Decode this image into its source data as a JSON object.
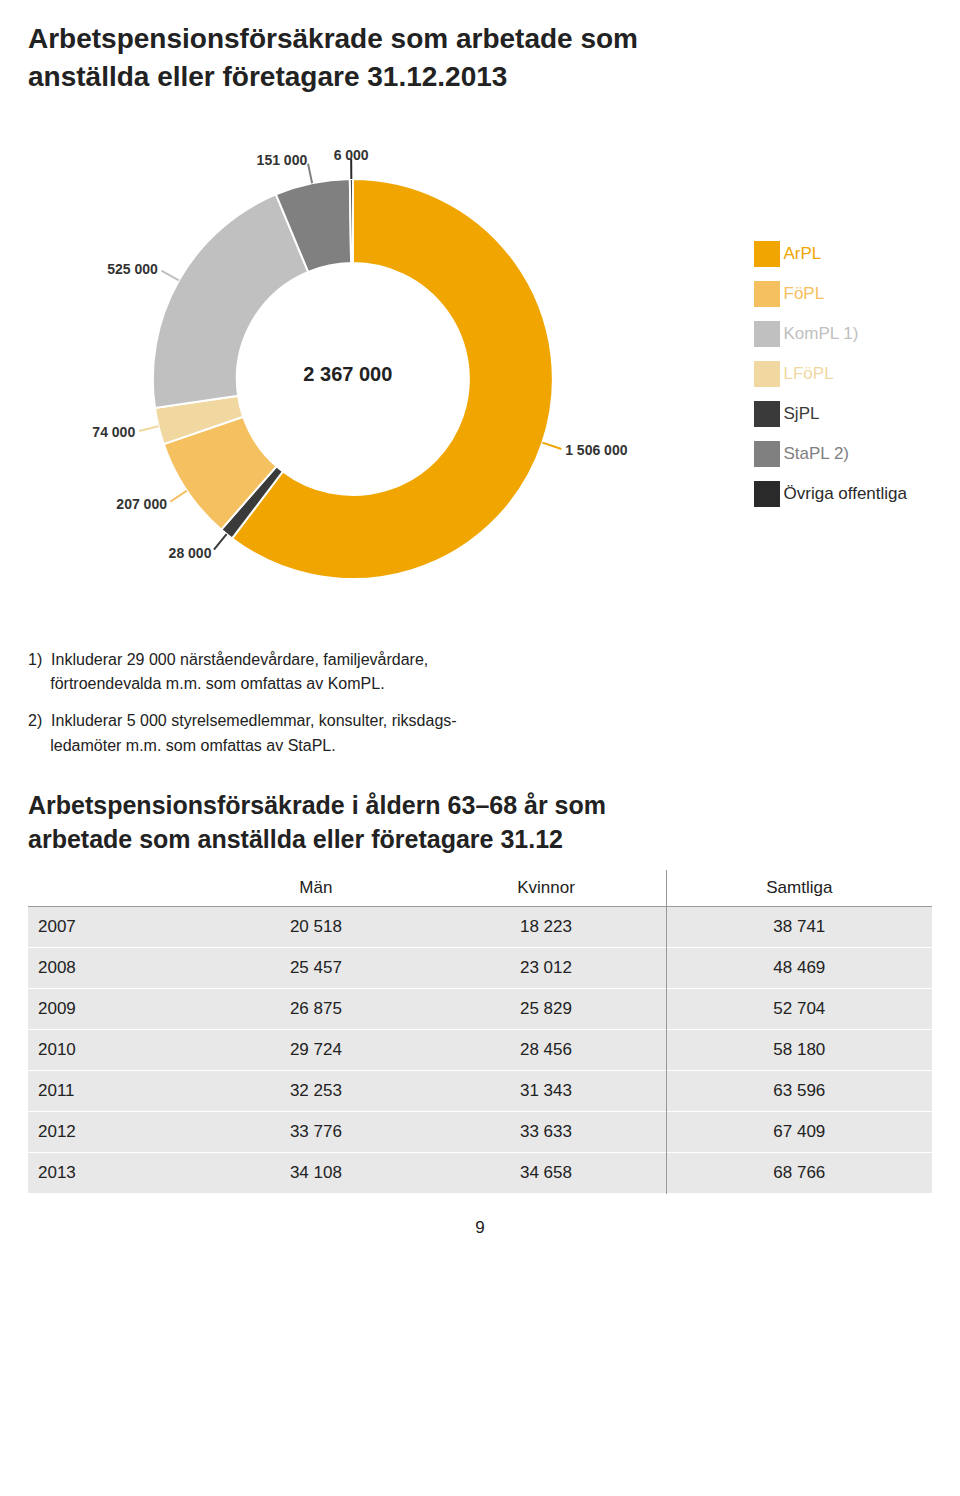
{
  "chart_data": [
    {
      "type": "pie",
      "title": "Arbetspensionsförsäkrade som arbetade som\nanställda eller företagare 31.12.2013",
      "categories": [
        "ArPL",
        "SjPL",
        "FöPL",
        "LFöPL",
        "KomPL 1)",
        "StaPL 2)",
        "Övriga offentliga"
      ],
      "values": [
        1506000,
        28000,
        207000,
        74000,
        525000,
        151000,
        6000
      ],
      "value_labels": [
        "1 506 000",
        "28 000",
        "207 000",
        "74 000",
        "525 000",
        "151 000",
        "6 000"
      ],
      "colors": [
        "#F0A500",
        "#3A3A3A",
        "#F5C060",
        "#F0D8A0",
        "#C0C0C0",
        "#808080",
        "#2A2A2A"
      ],
      "data_labels": true,
      "legend": "right",
      "annotations": [
        "2 367 000",
        "1)  Inkluderar 29 000 närståendevårdare, familjevårdare,\n     förtroendevalda m.m. som omfattas av KomPL.",
        "2)  Inkluderar 5 000 styrelsemedlemmar, konsulter, riksdags-\n     ledamöter m.m. som omfattas av StaPL."
      ]
    },
    {
      "type": "table",
      "title": "Arbetspensionsförsäkrade i åldern 63–68 år som\narbetade som anställda eller företagare 31.12",
      "columns": [
        "Män",
        "Kvinnor",
        "Samtliga"
      ],
      "rows": [
        [
          "2007",
          "20 518",
          "18 223",
          "38 741"
        ],
        [
          "2008",
          "25 457",
          "23 012",
          "48 469"
        ],
        [
          "2009",
          "26 875",
          "25 829",
          "52 704"
        ],
        [
          "2010",
          "29 724",
          "28 456",
          "58 180"
        ],
        [
          "2011",
          "32 253",
          "31 343",
          "63 596"
        ],
        [
          "2012",
          "33 776",
          "33 633",
          "67 409"
        ],
        [
          "2013",
          "34 108",
          "34 658",
          "68 766"
        ]
      ],
      "annotations": [
        "9"
      ]
    }
  ]
}
